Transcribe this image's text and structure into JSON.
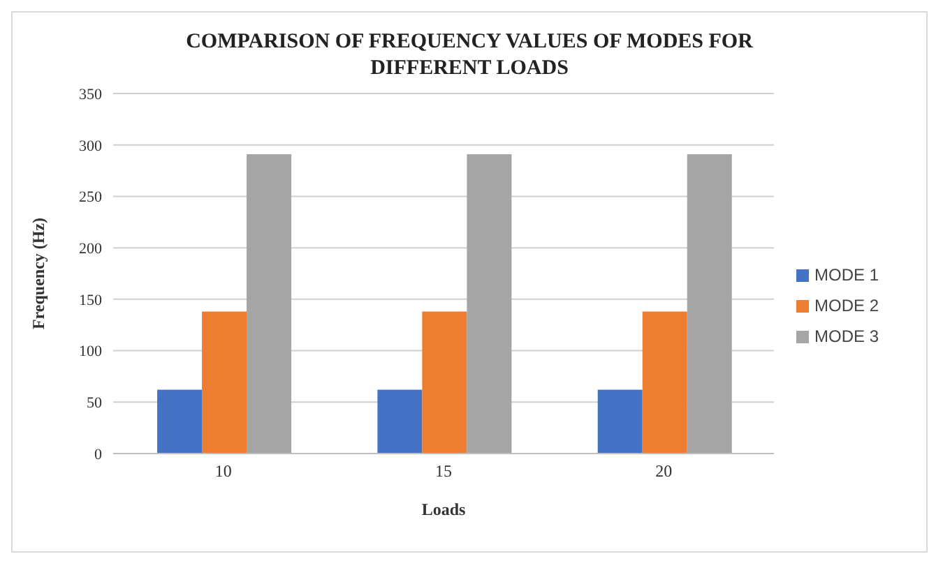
{
  "chart_data": {
    "type": "bar",
    "title": "COMPARISON OF FREQUENCY VALUES OF MODES FOR DIFFERENT LOADS",
    "xlabel": "Loads",
    "ylabel": "Frequency (Hz)",
    "categories": [
      "10",
      "15",
      "20"
    ],
    "series": [
      {
        "name": "MODE 1",
        "color": "#4472c4",
        "values": [
          62,
          62,
          62
        ]
      },
      {
        "name": "MODE 2",
        "color": "#ed7d31",
        "values": [
          138,
          138,
          138
        ]
      },
      {
        "name": "MODE 3",
        "color": "#a5a5a5",
        "values": [
          291,
          291,
          291
        ]
      }
    ],
    "ylim": [
      0,
      350
    ],
    "yticks": [
      0,
      50,
      100,
      150,
      200,
      250,
      300,
      350
    ],
    "grid": "y",
    "legend": "right"
  }
}
